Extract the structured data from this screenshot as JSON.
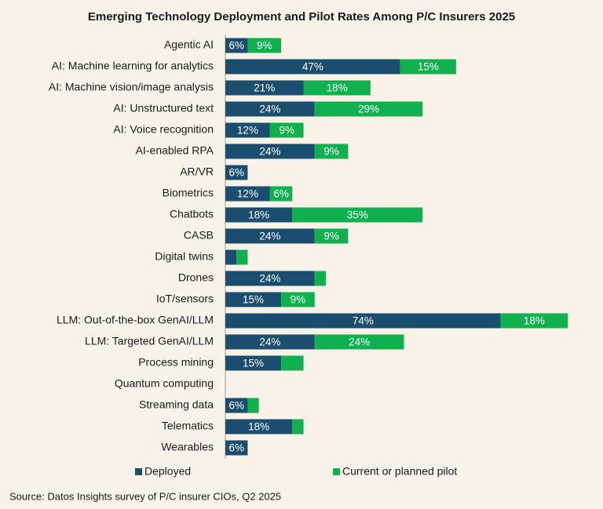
{
  "chart_data": {
    "type": "stacked-bar",
    "orientation": "horizontal",
    "title": "Emerging Technology Deployment and Pilot Rates Among P/C Insurers 2025",
    "source": "Source: Datos Insights survey of P/C insurer CIOs, Q2 2025",
    "categories": [
      "Agentic AI",
      "AI: Machine learning for analytics",
      "AI: Machine vision/image analysis",
      "AI: Unstructured text",
      "AI: Voice recognition",
      "AI-enabled RPA",
      "AR/VR",
      "Biometrics",
      "Chatbots",
      "CASB",
      "Digital twins",
      "Drones",
      "IoT/sensors",
      "LLM: Out-of-the-box GenAI/LLM",
      "LLM: Targeted GenAI/LLM",
      "Process mining",
      "Quantum computing",
      "Streaming data",
      "Telematics",
      "Wearables"
    ],
    "series": [
      {
        "name": "Deployed",
        "color": "#1a4d6e",
        "values": [
          6,
          47,
          21,
          24,
          12,
          24,
          6,
          12,
          18,
          24,
          3,
          24,
          15,
          74,
          24,
          15,
          0,
          6,
          18,
          6
        ],
        "value_labels": [
          "6%",
          "47%",
          "21%",
          "24%",
          "12%",
          "24%",
          "6%",
          "12%",
          "18%",
          "24%",
          null,
          "24%",
          "15%",
          "74%",
          "24%",
          "15%",
          null,
          "6%",
          "18%",
          "6%"
        ]
      },
      {
        "name": "Current or planned pilot",
        "color": "#10b04f",
        "values": [
          9,
          15,
          18,
          29,
          9,
          9,
          0,
          6,
          35,
          9,
          3,
          3,
          9,
          18,
          24,
          6,
          0,
          3,
          3,
          0
        ],
        "value_labels": [
          "9%",
          "15%",
          "18%",
          "29%",
          "9%",
          "9%",
          null,
          "6%",
          "35%",
          "9%",
          null,
          null,
          "9%",
          "18%",
          "24%",
          null,
          null,
          null,
          null,
          null
        ]
      }
    ],
    "legend": "bottom"
  }
}
